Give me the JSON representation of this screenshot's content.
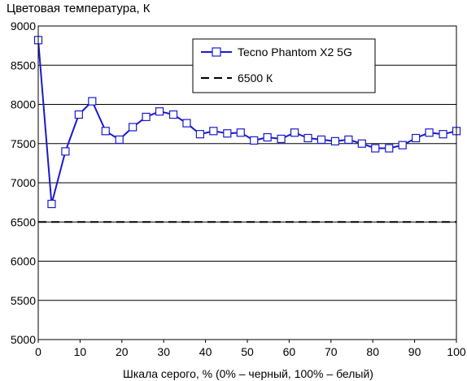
{
  "chart_data": {
    "type": "line",
    "title": "Цветовая температура, К",
    "xlabel": "Шкала серого, % (0% – черный, 100% – белый)",
    "ylabel": "",
    "xlim": [
      0,
      100
    ],
    "ylim": [
      5000,
      9000
    ],
    "xticks": [
      "0",
      "10",
      "20",
      "30",
      "40",
      "50",
      "60",
      "70",
      "80",
      "90",
      "100"
    ],
    "yticks": [
      "5000",
      "5500",
      "6000",
      "6500",
      "7000",
      "7500",
      "8000",
      "8500",
      "9000"
    ],
    "grid": "horizontal",
    "legend_position": "top-center",
    "series": [
      {
        "name": "Tecno Phantom X2 5G",
        "color": "#1a1acc",
        "marker": "square-open",
        "x": [
          0,
          3.2,
          6.5,
          9.7,
          12.9,
          16.1,
          19.4,
          22.6,
          25.8,
          29.0,
          32.3,
          35.5,
          38.7,
          41.9,
          45.2,
          48.4,
          51.6,
          54.8,
          58.1,
          61.3,
          64.5,
          67.7,
          71.0,
          74.2,
          77.4,
          80.6,
          83.9,
          87.1,
          90.3,
          93.5,
          96.8,
          100
        ],
        "values": [
          8820,
          6730,
          7400,
          7870,
          8040,
          7660,
          7550,
          7710,
          7840,
          7910,
          7870,
          7760,
          7620,
          7660,
          7630,
          7640,
          7540,
          7580,
          7560,
          7640,
          7570,
          7550,
          7530,
          7550,
          7500,
          7440,
          7440,
          7480,
          7570,
          7640,
          7620,
          7660
        ]
      },
      {
        "name": "6500 К",
        "color": "#000000",
        "dash": "dashed",
        "x": [
          0,
          100
        ],
        "values": [
          6500,
          6500
        ]
      }
    ]
  }
}
